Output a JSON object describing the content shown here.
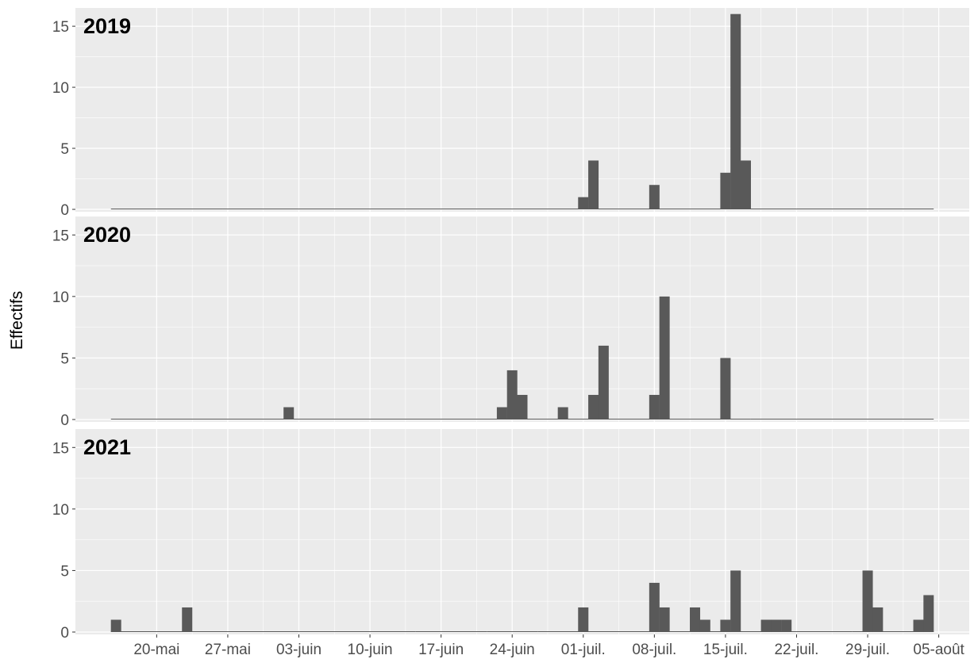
{
  "chart_data": {
    "type": "bar",
    "ylabel": "Effectifs",
    "xlabel": "",
    "ylim": [
      0,
      16.5
    ],
    "yticks": [
      0,
      5,
      10,
      15
    ],
    "x_range": [
      "2021-05-12",
      "2021-08-08"
    ],
    "xticks": [
      {
        "date": "2021-05-20",
        "label": "20-mai"
      },
      {
        "date": "2021-05-27",
        "label": "27-mai"
      },
      {
        "date": "2021-06-03",
        "label": "03-juin"
      },
      {
        "date": "2021-06-10",
        "label": "10-juin"
      },
      {
        "date": "2021-06-17",
        "label": "17-juin"
      },
      {
        "date": "2021-06-24",
        "label": "24-juin"
      },
      {
        "date": "2021-07-01",
        "label": "01-juil."
      },
      {
        "date": "2021-07-08",
        "label": "08-juil."
      },
      {
        "date": "2021-07-15",
        "label": "15-juil."
      },
      {
        "date": "2021-07-22",
        "label": "22-juil."
      },
      {
        "date": "2021-07-29",
        "label": "29-juil."
      },
      {
        "date": "2021-08-05",
        "label": "05-août"
      }
    ],
    "colors": {
      "bar": "#595959",
      "panel_bg": "#ebebeb",
      "grid": "#ffffff",
      "baseline": "#595959"
    },
    "panels": [
      {
        "name": "2019",
        "baseline_segments": [
          [
            "2021-05-16",
            "2021-05-26"
          ],
          [
            "2021-05-27",
            "2021-08-04"
          ]
        ],
        "bars": [
          {
            "date": "2021-07-01",
            "value": 1
          },
          {
            "date": "2021-07-02",
            "value": 4
          },
          {
            "date": "2021-07-08",
            "value": 2
          },
          {
            "date": "2021-07-15",
            "value": 3
          },
          {
            "date": "2021-07-16",
            "value": 16
          },
          {
            "date": "2021-07-17",
            "value": 4
          }
        ]
      },
      {
        "name": "2020",
        "baseline_segments": [
          [
            "2021-05-16",
            "2021-06-05"
          ],
          [
            "2021-06-06",
            "2021-07-17"
          ],
          [
            "2021-07-18",
            "2021-08-04"
          ]
        ],
        "bars": [
          {
            "date": "2021-06-02",
            "value": 1
          },
          {
            "date": "2021-06-23",
            "value": 1
          },
          {
            "date": "2021-06-24",
            "value": 4
          },
          {
            "date": "2021-06-25",
            "value": 2
          },
          {
            "date": "2021-06-29",
            "value": 1
          },
          {
            "date": "2021-07-02",
            "value": 2
          },
          {
            "date": "2021-07-03",
            "value": 6
          },
          {
            "date": "2021-07-08",
            "value": 2
          },
          {
            "date": "2021-07-09",
            "value": 10
          },
          {
            "date": "2021-07-15",
            "value": 5
          }
        ]
      },
      {
        "name": "2021",
        "baseline_segments": [
          [
            "2021-05-16",
            "2021-06-14"
          ],
          [
            "2021-06-15",
            "2021-06-21"
          ],
          [
            "2021-06-22",
            "2021-06-26"
          ],
          [
            "2021-06-27",
            "2021-07-27"
          ],
          [
            "2021-07-28",
            "2021-08-04"
          ]
        ],
        "bars": [
          {
            "date": "2021-05-16",
            "value": 1
          },
          {
            "date": "2021-05-23",
            "value": 2
          },
          {
            "date": "2021-07-01",
            "value": 2
          },
          {
            "date": "2021-07-08",
            "value": 4
          },
          {
            "date": "2021-07-09",
            "value": 2
          },
          {
            "date": "2021-07-12",
            "value": 2
          },
          {
            "date": "2021-07-13",
            "value": 1
          },
          {
            "date": "2021-07-15",
            "value": 1
          },
          {
            "date": "2021-07-16",
            "value": 5
          },
          {
            "date": "2021-07-19",
            "value": 1
          },
          {
            "date": "2021-07-20",
            "value": 1
          },
          {
            "date": "2021-07-21",
            "value": 1
          },
          {
            "date": "2021-07-29",
            "value": 5
          },
          {
            "date": "2021-07-30",
            "value": 2
          },
          {
            "date": "2021-08-03",
            "value": 1
          },
          {
            "date": "2021-08-04",
            "value": 3
          }
        ]
      }
    ]
  }
}
